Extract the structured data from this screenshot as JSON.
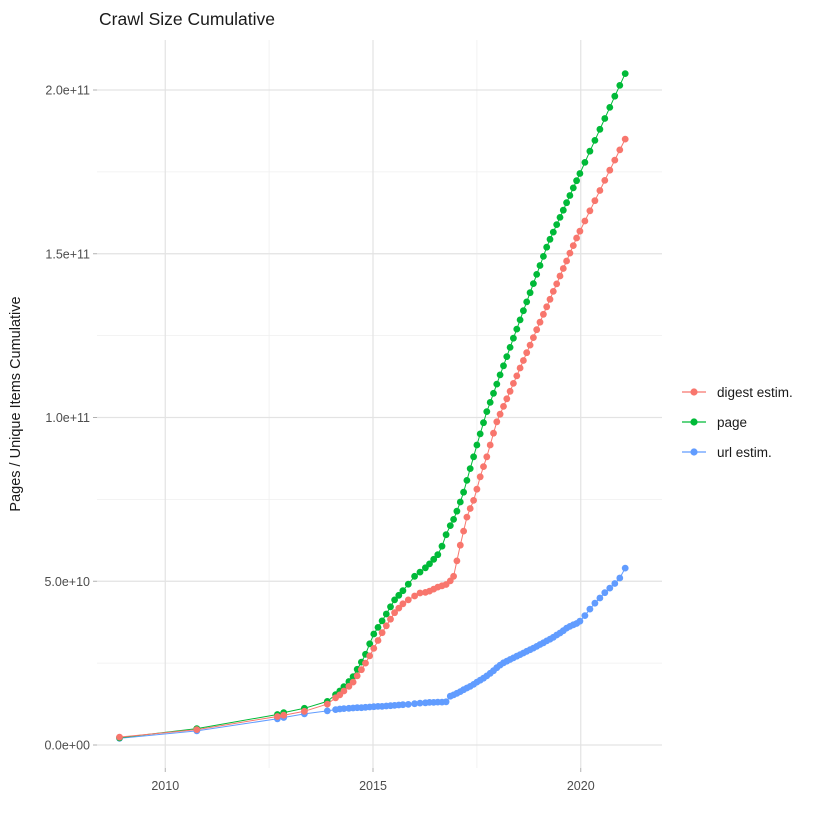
{
  "chart_data": {
    "type": "scatter",
    "title": "Crawl Size Cumulative",
    "xlabel": "",
    "ylabel": "Pages / Unique Items Cumulative",
    "legend_position": "right",
    "grid": true,
    "xlim": [
      2008.4,
      2021.6
    ],
    "ylim": [
      0,
      215000000000.0
    ],
    "x_ticks": [
      {
        "value": 2010,
        "label": "2010"
      },
      {
        "value": 2015,
        "label": "2015"
      },
      {
        "value": 2020,
        "label": "2020"
      }
    ],
    "x_minor_ticks": [
      2012.5,
      2017.5
    ],
    "y_ticks": [
      {
        "value": 0,
        "label": "0.0e+00"
      },
      {
        "value": 50,
        "label": "5.0e+10"
      },
      {
        "value": 100,
        "label": "1.0e+11"
      },
      {
        "value": 150,
        "label": "1.5e+11"
      },
      {
        "value": 200,
        "label": "2.0e+11"
      }
    ],
    "y_minor_ticks": [
      25,
      75,
      125,
      175
    ],
    "value_unit": "items, billions (1e9)",
    "series": [
      {
        "name": "digest estim.",
        "color": "#F8766D",
        "points": [
          [
            2008.9,
            2.4
          ],
          [
            2010.76,
            4.7
          ],
          [
            2012.7,
            8.7
          ],
          [
            2012.85,
            9.1
          ],
          [
            2013.35,
            10.3
          ],
          [
            2013.9,
            12.5
          ],
          [
            2014.1,
            14.4
          ],
          [
            2014.2,
            15.3
          ],
          [
            2014.3,
            16.5
          ],
          [
            2014.42,
            17.9
          ],
          [
            2014.52,
            19.2
          ],
          [
            2014.62,
            21.1
          ],
          [
            2014.72,
            23.0
          ],
          [
            2014.82,
            25.0
          ],
          [
            2014.92,
            27.2
          ],
          [
            2015.02,
            29.5
          ],
          [
            2015.12,
            31.9
          ],
          [
            2015.22,
            34.3
          ],
          [
            2015.32,
            36.4
          ],
          [
            2015.42,
            38.4
          ],
          [
            2015.52,
            40.4
          ],
          [
            2015.62,
            41.8
          ],
          [
            2015.72,
            43.1
          ],
          [
            2015.85,
            44.3
          ],
          [
            2016.0,
            45.5
          ],
          [
            2016.13,
            46.4
          ],
          [
            2016.26,
            46.6
          ],
          [
            2016.36,
            47.0
          ],
          [
            2016.46,
            47.6
          ],
          [
            2016.56,
            48.2
          ],
          [
            2016.66,
            48.6
          ],
          [
            2016.76,
            49.0
          ],
          [
            2016.86,
            50.1
          ],
          [
            2016.94,
            51.5
          ],
          [
            2017.02,
            56.2
          ],
          [
            2017.1,
            61.0
          ],
          [
            2017.18,
            65.3
          ],
          [
            2017.26,
            69.6
          ],
          [
            2017.34,
            72.2
          ],
          [
            2017.42,
            74.7
          ],
          [
            2017.5,
            78.1
          ],
          [
            2017.58,
            81.9
          ],
          [
            2017.66,
            85.0
          ],
          [
            2017.74,
            88.0
          ],
          [
            2017.82,
            91.6
          ],
          [
            2017.9,
            95.2
          ],
          [
            2017.98,
            98.7
          ],
          [
            2018.06,
            101.0
          ],
          [
            2018.14,
            103.4
          ],
          [
            2018.22,
            105.7
          ],
          [
            2018.3,
            108.0
          ],
          [
            2018.38,
            110.4
          ],
          [
            2018.46,
            112.7
          ],
          [
            2018.54,
            115.1
          ],
          [
            2018.62,
            117.4
          ],
          [
            2018.7,
            119.8
          ],
          [
            2018.78,
            122.1
          ],
          [
            2018.86,
            124.4
          ],
          [
            2018.94,
            126.8
          ],
          [
            2019.02,
            129.1
          ],
          [
            2019.1,
            131.5
          ],
          [
            2019.18,
            133.8
          ],
          [
            2019.26,
            136.1
          ],
          [
            2019.34,
            138.5
          ],
          [
            2019.42,
            140.8
          ],
          [
            2019.5,
            143.2
          ],
          [
            2019.58,
            145.5
          ],
          [
            2019.66,
            147.8
          ],
          [
            2019.74,
            150.2
          ],
          [
            2019.82,
            152.5
          ],
          [
            2019.9,
            154.8
          ],
          [
            2019.98,
            156.9
          ],
          [
            2020.1,
            160.0
          ],
          [
            2020.22,
            163.1
          ],
          [
            2020.34,
            166.2
          ],
          [
            2020.46,
            169.3
          ],
          [
            2020.58,
            172.4
          ],
          [
            2020.7,
            175.5
          ],
          [
            2020.82,
            178.6
          ],
          [
            2020.94,
            181.7
          ],
          [
            2021.07,
            185.0
          ]
        ]
      },
      {
        "name": "page",
        "color": "#00BA38",
        "points": [
          [
            2008.9,
            2.2
          ],
          [
            2010.76,
            5.0
          ],
          [
            2012.7,
            9.3
          ],
          [
            2012.85,
            9.9
          ],
          [
            2013.35,
            11.2
          ],
          [
            2013.9,
            13.3
          ],
          [
            2014.1,
            15.4
          ],
          [
            2014.2,
            16.5
          ],
          [
            2014.3,
            17.8
          ],
          [
            2014.42,
            19.4
          ],
          [
            2014.52,
            20.9
          ],
          [
            2014.62,
            23.1
          ],
          [
            2014.72,
            25.3
          ],
          [
            2014.82,
            27.7
          ],
          [
            2014.92,
            30.9
          ],
          [
            2015.02,
            33.9
          ],
          [
            2015.12,
            35.9
          ],
          [
            2015.22,
            37.9
          ],
          [
            2015.32,
            40.0
          ],
          [
            2015.42,
            42.2
          ],
          [
            2015.52,
            44.3
          ],
          [
            2015.62,
            45.7
          ],
          [
            2015.72,
            47.1
          ],
          [
            2015.85,
            49.1
          ],
          [
            2016.0,
            51.5
          ],
          [
            2016.13,
            52.8
          ],
          [
            2016.26,
            54.1
          ],
          [
            2016.36,
            55.3
          ],
          [
            2016.46,
            56.7
          ],
          [
            2016.56,
            58.1
          ],
          [
            2016.66,
            60.7
          ],
          [
            2016.76,
            64.2
          ],
          [
            2016.86,
            67.0
          ],
          [
            2016.94,
            68.9
          ],
          [
            2017.02,
            71.4
          ],
          [
            2017.1,
            74.2
          ],
          [
            2017.18,
            77.2
          ],
          [
            2017.26,
            80.8
          ],
          [
            2017.34,
            84.4
          ],
          [
            2017.42,
            88.0
          ],
          [
            2017.5,
            91.6
          ],
          [
            2017.58,
            95.0
          ],
          [
            2017.66,
            98.4
          ],
          [
            2017.74,
            101.8
          ],
          [
            2017.82,
            104.6
          ],
          [
            2017.9,
            107.4
          ],
          [
            2017.98,
            110.2
          ],
          [
            2018.06,
            113.0
          ],
          [
            2018.14,
            115.8
          ],
          [
            2018.22,
            118.6
          ],
          [
            2018.3,
            121.4
          ],
          [
            2018.38,
            124.2
          ],
          [
            2018.46,
            127.0
          ],
          [
            2018.54,
            129.8
          ],
          [
            2018.62,
            132.6
          ],
          [
            2018.7,
            135.3
          ],
          [
            2018.78,
            138.1
          ],
          [
            2018.86,
            140.9
          ],
          [
            2018.94,
            143.7
          ],
          [
            2019.02,
            146.4
          ],
          [
            2019.1,
            149.2
          ],
          [
            2019.18,
            152.0
          ],
          [
            2019.26,
            154.4
          ],
          [
            2019.34,
            156.6
          ],
          [
            2019.42,
            158.9
          ],
          [
            2019.5,
            161.1
          ],
          [
            2019.58,
            163.3
          ],
          [
            2019.66,
            165.6
          ],
          [
            2019.74,
            167.8
          ],
          [
            2019.82,
            170.1
          ],
          [
            2019.9,
            172.3
          ],
          [
            2019.98,
            174.5
          ],
          [
            2020.1,
            177.9
          ],
          [
            2020.22,
            181.3
          ],
          [
            2020.34,
            184.6
          ],
          [
            2020.46,
            188.0
          ],
          [
            2020.58,
            191.3
          ],
          [
            2020.7,
            194.7
          ],
          [
            2020.82,
            198.1
          ],
          [
            2020.94,
            201.4
          ],
          [
            2021.07,
            205.0
          ]
        ]
      },
      {
        "name": "url estim.",
        "color": "#619CFF",
        "points": [
          [
            2008.9,
            2.05
          ],
          [
            2010.76,
            4.3
          ],
          [
            2012.7,
            8.0
          ],
          [
            2012.85,
            8.4
          ],
          [
            2013.35,
            9.5
          ],
          [
            2013.9,
            10.4
          ],
          [
            2014.1,
            10.8
          ],
          [
            2014.2,
            11.0
          ],
          [
            2014.3,
            11.1
          ],
          [
            2014.42,
            11.2
          ],
          [
            2014.52,
            11.3
          ],
          [
            2014.62,
            11.4
          ],
          [
            2014.72,
            11.4
          ],
          [
            2014.82,
            11.5
          ],
          [
            2014.92,
            11.6
          ],
          [
            2015.02,
            11.7
          ],
          [
            2015.12,
            11.8
          ],
          [
            2015.22,
            11.8
          ],
          [
            2015.32,
            11.9
          ],
          [
            2015.42,
            12.0
          ],
          [
            2015.52,
            12.1
          ],
          [
            2015.62,
            12.2
          ],
          [
            2015.72,
            12.3
          ],
          [
            2015.85,
            12.4
          ],
          [
            2016.0,
            12.6
          ],
          [
            2016.13,
            12.8
          ],
          [
            2016.26,
            12.9
          ],
          [
            2016.36,
            13.0
          ],
          [
            2016.46,
            13.0
          ],
          [
            2016.56,
            13.1
          ],
          [
            2016.66,
            13.1
          ],
          [
            2016.76,
            13.2
          ],
          [
            2016.86,
            14.9
          ],
          [
            2016.94,
            15.3
          ],
          [
            2017.02,
            15.8
          ],
          [
            2017.1,
            16.3
          ],
          [
            2017.18,
            16.9
          ],
          [
            2017.26,
            17.4
          ],
          [
            2017.34,
            17.9
          ],
          [
            2017.42,
            18.5
          ],
          [
            2017.5,
            19.2
          ],
          [
            2017.58,
            19.8
          ],
          [
            2017.66,
            20.4
          ],
          [
            2017.74,
            21.1
          ],
          [
            2017.82,
            21.9
          ],
          [
            2017.9,
            22.7
          ],
          [
            2017.98,
            23.6
          ],
          [
            2018.06,
            24.4
          ],
          [
            2018.14,
            25.1
          ],
          [
            2018.22,
            25.6
          ],
          [
            2018.3,
            26.1
          ],
          [
            2018.38,
            26.6
          ],
          [
            2018.46,
            27.1
          ],
          [
            2018.54,
            27.6
          ],
          [
            2018.62,
            28.1
          ],
          [
            2018.7,
            28.6
          ],
          [
            2018.78,
            29.1
          ],
          [
            2018.86,
            29.6
          ],
          [
            2018.94,
            30.1
          ],
          [
            2019.02,
            30.7
          ],
          [
            2019.1,
            31.2
          ],
          [
            2019.18,
            31.8
          ],
          [
            2019.26,
            32.3
          ],
          [
            2019.34,
            32.9
          ],
          [
            2019.42,
            33.6
          ],
          [
            2019.5,
            34.2
          ],
          [
            2019.58,
            34.9
          ],
          [
            2019.66,
            35.7
          ],
          [
            2019.74,
            36.2
          ],
          [
            2019.82,
            36.7
          ],
          [
            2019.9,
            37.1
          ],
          [
            2019.98,
            37.8
          ],
          [
            2020.1,
            39.5
          ],
          [
            2020.22,
            41.5
          ],
          [
            2020.34,
            43.3
          ],
          [
            2020.46,
            44.9
          ],
          [
            2020.58,
            46.5
          ],
          [
            2020.7,
            47.9
          ],
          [
            2020.82,
            49.3
          ],
          [
            2020.94,
            51.0
          ],
          [
            2021.07,
            54.0
          ]
        ]
      }
    ],
    "style": {
      "grid_major_color": "#e3e3e3",
      "grid_minor_color": "#efefef",
      "tick_mark_color": "#b0b0b0",
      "axis_text_color": "#4d4d4d",
      "text_color": "#1a1a1a",
      "background": "#ffffff"
    }
  }
}
